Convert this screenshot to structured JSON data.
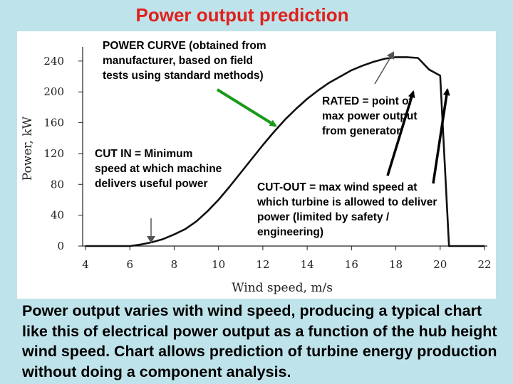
{
  "slide": {
    "title": "Power output prediction",
    "caption": "Power output varies with wind speed, producing a typical chart like this of electrical power output as a function of the hub height wind speed. Chart allows prediction of turbine energy production without doing a component analysis."
  },
  "annotations": {
    "power_curve": "POWER CURVE (obtained from manufacturer, based on field tests using standard methods)",
    "cut_in": "CUT IN = Minimum speed at which machine delivers useful power",
    "rated": "RATED = point of max power output from generator",
    "cut_out": "CUT-OUT = max wind speed at which turbine is allowed to deliver power (limited by safety / engineering)"
  },
  "colors": {
    "background": "#bfe3ea",
    "title": "#e0201c",
    "arrow_green": "#1a9a1a",
    "arrow_black": "#000000"
  },
  "chart_data": {
    "type": "line",
    "title": "",
    "xlabel": "Wind speed, m/s",
    "ylabel": "Power, kW",
    "xlim": [
      4,
      22
    ],
    "ylim": [
      0,
      250
    ],
    "x_ticks": [
      "4",
      "6",
      "8",
      "10",
      "12",
      "14",
      "16",
      "18",
      "20",
      "22"
    ],
    "y_ticks": [
      "0",
      "40",
      "80",
      "120",
      "160",
      "200",
      "240"
    ],
    "series": [
      {
        "x": [
          4,
          5,
          6,
          6.5,
          7,
          7.5,
          8,
          8.5,
          9,
          9.5,
          10,
          10.5,
          11,
          11.5,
          12,
          12.5,
          13,
          13.5,
          14,
          14.5,
          15,
          15.5,
          16,
          16.5,
          17,
          17.5,
          18,
          18.5,
          19,
          19.5,
          20,
          20.4,
          21,
          22
        ],
        "y": [
          0,
          0,
          0,
          2,
          5,
          9,
          15,
          22,
          32,
          45,
          60,
          77,
          95,
          113,
          131,
          148,
          164,
          178,
          191,
          202,
          212,
          220,
          228,
          234,
          239,
          243,
          245,
          245,
          244,
          229,
          221,
          0,
          0,
          0
        ]
      }
    ],
    "grid": false,
    "legend": "none"
  }
}
